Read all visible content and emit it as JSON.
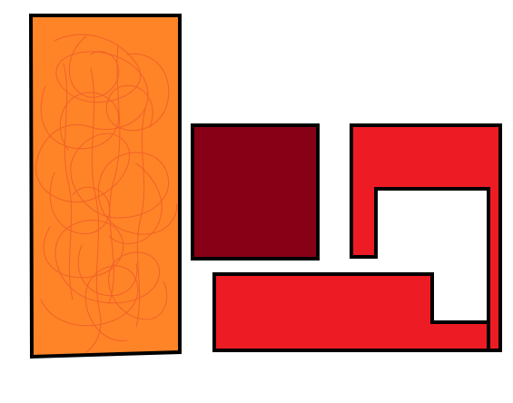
{
  "colors": {
    "background": "#ffffff",
    "outline": "#000000",
    "orange_fill": "#ff8427",
    "scribble": "#f0602a",
    "dark_red_fill": "#880015",
    "red_fill": "#ed1c24"
  },
  "shapes": {
    "orange_rectangle": {
      "icon": "orange-rectangle-with-scribble"
    },
    "dark_red_square": {
      "icon": "dark-red-square"
    },
    "red_hook_shape": {
      "icon": "red-hook-shape"
    }
  }
}
